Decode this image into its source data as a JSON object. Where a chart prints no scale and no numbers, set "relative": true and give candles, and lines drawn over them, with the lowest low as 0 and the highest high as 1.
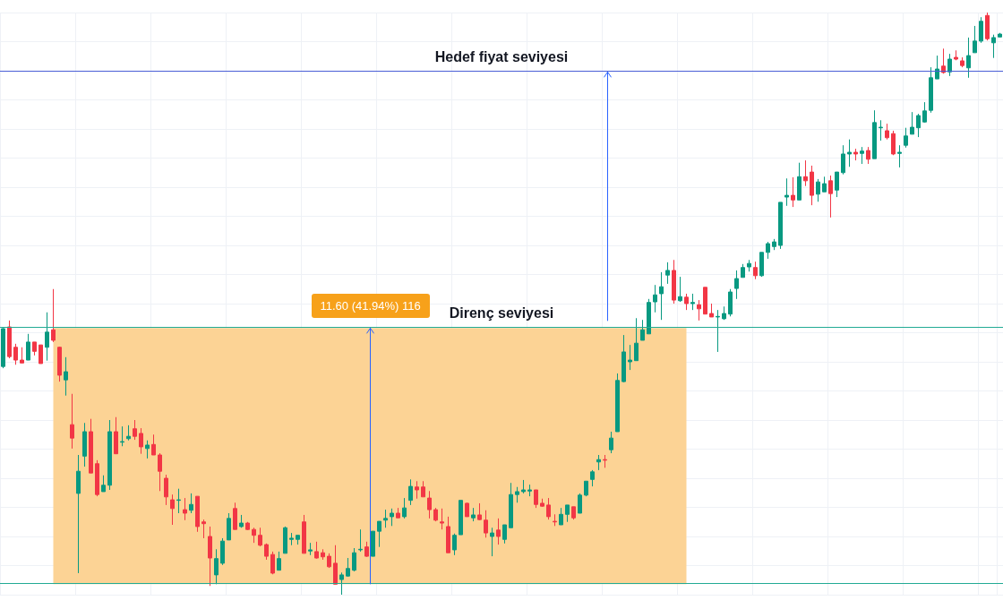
{
  "chart_data": {
    "type": "candlestick",
    "relative": true,
    "grid": true,
    "categories": [
      null,
      null,
      null,
      null,
      null,
      null,
      null,
      null,
      null,
      null,
      null,
      null,
      null,
      null,
      null,
      null,
      null,
      null,
      null,
      null,
      null,
      null,
      null,
      null,
      null,
      null,
      null,
      null,
      null,
      null,
      null,
      null,
      null,
      null,
      null,
      null,
      null,
      null,
      null,
      null,
      null,
      null,
      null,
      null,
      null,
      null,
      null,
      null,
      null,
      null,
      null,
      null,
      null,
      null,
      null,
      null,
      null,
      null,
      null,
      null,
      null,
      null,
      null,
      null,
      null,
      null,
      null,
      null,
      null,
      null,
      null,
      null,
      null,
      null,
      null,
      null,
      null,
      null,
      null,
      null,
      null,
      null,
      null,
      null,
      null,
      null,
      null,
      null,
      null,
      null,
      null,
      null,
      null,
      null,
      null,
      null,
      null,
      null,
      null,
      null,
      null,
      null,
      null,
      null,
      null,
      null,
      null,
      null,
      null,
      null,
      null,
      null,
      null,
      null,
      null,
      null,
      null,
      null,
      null,
      null,
      null,
      null,
      null,
      null,
      null,
      null,
      null,
      null,
      null,
      null,
      null,
      null,
      null,
      null,
      null,
      null,
      null,
      null,
      null,
      null,
      null,
      null,
      null,
      null,
      null,
      null,
      null,
      null,
      null,
      null,
      null,
      null,
      null,
      null,
      null,
      null,
      null,
      null,
      null,
      null
    ],
    "ohlc": [
      [
        0.392,
        0.458,
        0.389,
        0.457
      ],
      [
        0.46,
        0.471,
        0.406,
        0.409
      ],
      [
        0.425,
        0.431,
        0.395,
        0.403
      ],
      [
        0.403,
        0.425,
        0.398,
        0.398
      ],
      [
        0.403,
        0.448,
        0.403,
        0.434
      ],
      [
        0.434,
        0.434,
        0.411,
        0.418
      ],
      [
        0.429,
        0.429,
        0.397,
        0.397
      ],
      [
        0.425,
        0.485,
        0.402,
        0.451
      ],
      [
        0.455,
        0.525,
        0.434,
        0.437
      ],
      [
        0.425,
        0.426,
        0.366,
        0.377
      ],
      [
        0.369,
        0.408,
        0.342,
        0.383
      ],
      [
        0.292,
        0.345,
        0.251,
        0.269
      ],
      [
        0.174,
        0.24,
        0.037,
        0.212
      ],
      [
        0.238,
        0.295,
        0.22,
        0.28
      ],
      [
        0.28,
        0.302,
        0.209,
        0.209
      ],
      [
        0.225,
        0.231,
        0.169,
        0.172
      ],
      [
        0.177,
        0.205,
        0.177,
        0.188
      ],
      [
        0.188,
        0.3,
        0.18,
        0.28
      ],
      [
        0.28,
        0.305,
        0.242,
        0.242
      ],
      [
        0.262,
        0.289,
        0.255,
        0.263
      ],
      [
        0.268,
        0.291,
        0.265,
        0.272
      ],
      [
        0.285,
        0.3,
        0.266,
        0.272
      ],
      [
        0.277,
        0.286,
        0.242,
        0.254
      ],
      [
        0.251,
        0.265,
        0.234,
        0.257
      ],
      [
        0.258,
        0.275,
        0.24,
        0.24
      ],
      [
        0.24,
        0.243,
        0.178,
        0.212
      ],
      [
        0.2,
        0.206,
        0.154,
        0.168
      ],
      [
        0.163,
        0.172,
        0.12,
        0.148
      ],
      [
        0.162,
        0.182,
        0.14,
        0.163
      ],
      [
        0.146,
        0.166,
        0.128,
        0.14
      ],
      [
        0.145,
        0.174,
        0.14,
        0.155
      ],
      [
        0.169,
        0.169,
        0.108,
        0.117
      ],
      [
        0.125,
        0.129,
        0.097,
        0.122
      ],
      [
        0.1,
        0.117,
        0.015,
        0.063
      ],
      [
        0.034,
        0.078,
        0.018,
        0.062
      ],
      [
        0.054,
        0.097,
        0.051,
        0.092
      ],
      [
        0.094,
        0.14,
        0.094,
        0.131
      ],
      [
        0.148,
        0.158,
        0.112,
        0.112
      ],
      [
        0.117,
        0.137,
        0.115,
        0.123
      ],
      [
        0.123,
        0.125,
        0.111,
        0.112
      ],
      [
        0.112,
        0.115,
        0.089,
        0.102
      ],
      [
        0.102,
        0.115,
        0.083,
        0.085
      ],
      [
        0.086,
        0.088,
        0.06,
        0.066
      ],
      [
        0.069,
        0.074,
        0.035,
        0.037
      ],
      [
        0.042,
        0.074,
        0.042,
        0.062
      ],
      [
        0.071,
        0.117,
        0.071,
        0.115
      ],
      [
        0.095,
        0.106,
        0.085,
        0.097
      ],
      [
        0.095,
        0.102,
        0.086,
        0.102
      ],
      [
        0.125,
        0.137,
        0.071,
        0.071
      ],
      [
        0.075,
        0.089,
        0.068,
        0.077
      ],
      [
        0.074,
        0.091,
        0.062,
        0.063
      ],
      [
        0.072,
        0.078,
        0.06,
        0.065
      ],
      [
        0.066,
        0.071,
        0.046,
        0.048
      ],
      [
        0.054,
        0.085,
        0.018,
        0.018
      ],
      [
        0.026,
        0.038,
        0,
        0.034
      ],
      [
        0.032,
        0.063,
        0.031,
        0.045
      ],
      [
        0.042,
        0.08,
        0.04,
        0.072
      ],
      [
        0.077,
        0.112,
        0.074,
        0.078
      ],
      [
        0.082,
        0.091,
        0.065,
        0.066
      ],
      [
        0.066,
        0.109,
        0.066,
        0.109
      ],
      [
        0.109,
        0.126,
        0.082,
        0.126
      ],
      [
        0.128,
        0.146,
        0.115,
        0.131
      ],
      [
        0.134,
        0.148,
        0.118,
        0.14
      ],
      [
        0.14,
        0.149,
        0.132,
        0.132
      ],
      [
        0.134,
        0.166,
        0.131,
        0.149
      ],
      [
        0.162,
        0.198,
        0.154,
        0.186
      ],
      [
        0.185,
        0.195,
        0.165,
        0.18
      ],
      [
        0.185,
        0.195,
        0.168,
        0.168
      ],
      [
        0.166,
        0.178,
        0.131,
        0.146
      ],
      [
        0.146,
        0.149,
        0.126,
        0.128
      ],
      [
        0.125,
        0.148,
        0.112,
        0.123
      ],
      [
        0.117,
        0.134,
        0.072,
        0.072
      ],
      [
        0.077,
        0.105,
        0.068,
        0.102
      ],
      [
        0.103,
        0.162,
        0.103,
        0.162
      ],
      [
        0.157,
        0.158,
        0.134,
        0.134
      ],
      [
        0.132,
        0.149,
        0.126,
        0.137
      ],
      [
        0.137,
        0.157,
        0.128,
        0.129
      ],
      [
        0.128,
        0.145,
        0.098,
        0.106
      ],
      [
        0.1,
        0.115,
        0.066,
        0.106
      ],
      [
        0.111,
        0.131,
        0.086,
        0.1
      ],
      [
        0.095,
        0.12,
        0.088,
        0.12
      ],
      [
        0.115,
        0.192,
        0.115,
        0.172
      ],
      [
        0.172,
        0.185,
        0.158,
        0.177
      ],
      [
        0.177,
        0.197,
        0.174,
        0.18
      ],
      [
        0.178,
        0.189,
        0.169,
        0.18
      ],
      [
        0.18,
        0.18,
        0.149,
        0.155
      ],
      [
        0.157,
        0.165,
        0.151,
        0.152
      ],
      [
        0.154,
        0.166,
        0.129,
        0.134
      ],
      [
        0.126,
        0.138,
        0.118,
        0.125
      ],
      [
        0.12,
        0.149,
        0.12,
        0.138
      ],
      [
        0.138,
        0.154,
        0.125,
        0.154
      ],
      [
        0.151,
        0.151,
        0.129,
        0.132
      ],
      [
        0.14,
        0.174,
        0.14,
        0.171
      ],
      [
        0.171,
        0.195,
        0.169,
        0.195
      ],
      [
        0.198,
        0.214,
        0.186,
        0.211
      ],
      [
        0.228,
        0.24,
        0.214,
        0.232
      ],
      [
        0.232,
        0.24,
        0.218,
        0.231
      ],
      [
        0.249,
        0.28,
        0.243,
        0.269
      ],
      [
        0.28,
        0.38,
        0.28,
        0.368
      ],
      [
        0.366,
        0.446,
        0.365,
        0.417
      ],
      [
        0.4,
        0.429,
        0.386,
        0.403
      ],
      [
        0.402,
        0.475,
        0.402,
        0.432
      ],
      [
        0.437,
        0.472,
        0.437,
        0.455
      ],
      [
        0.448,
        0.508,
        0.448,
        0.502
      ],
      [
        0.503,
        0.532,
        0.485,
        0.515
      ],
      [
        0.517,
        0.554,
        0.472,
        0.529
      ],
      [
        0.549,
        0.571,
        0.534,
        0.557
      ],
      [
        0.557,
        0.575,
        0.5,
        0.506
      ],
      [
        0.505,
        0.546,
        0.503,
        0.512
      ],
      [
        0.511,
        0.517,
        0.489,
        0.5
      ],
      [
        0.5,
        0.517,
        0.489,
        0.502
      ],
      [
        0.498,
        0.506,
        0.471,
        0.491
      ],
      [
        0.528,
        0.528,
        0.482,
        0.482
      ],
      [
        0.483,
        0.5,
        0.477,
        0.477
      ],
      [
        0.477,
        0.489,
        0.417,
        0.478
      ],
      [
        0.474,
        0.495,
        0.472,
        0.483
      ],
      [
        0.482,
        0.525,
        0.478,
        0.52
      ],
      [
        0.526,
        0.557,
        0.508,
        0.543
      ],
      [
        0.545,
        0.568,
        0.545,
        0.562
      ],
      [
        0.563,
        0.575,
        0.555,
        0.569
      ],
      [
        0.562,
        0.572,
        0.542,
        0.548
      ],
      [
        0.548,
        0.588,
        0.546,
        0.588
      ],
      [
        0.588,
        0.606,
        0.577,
        0.603
      ],
      [
        0.598,
        0.611,
        0.592,
        0.606
      ],
      [
        0.6,
        0.674,
        0.594,
        0.674
      ],
      [
        0.683,
        0.715,
        0.668,
        0.686
      ],
      [
        0.686,
        0.717,
        0.666,
        0.678
      ],
      [
        0.678,
        0.742,
        0.678,
        0.718
      ],
      [
        0.718,
        0.746,
        0.702,
        0.711
      ],
      [
        0.726,
        0.737,
        0.669,
        0.686
      ],
      [
        0.688,
        0.714,
        0.675,
        0.709
      ],
      [
        0.692,
        0.718,
        0.692,
        0.706
      ],
      [
        0.711,
        0.72,
        0.648,
        0.689
      ],
      [
        0.695,
        0.726,
        0.683,
        0.726
      ],
      [
        0.725,
        0.772,
        0.722,
        0.757
      ],
      [
        0.757,
        0.782,
        0.735,
        0.76
      ],
      [
        0.76,
        0.766,
        0.746,
        0.757
      ],
      [
        0.758,
        0.769,
        0.74,
        0.762
      ],
      [
        0.763,
        0.769,
        0.74,
        0.748
      ],
      [
        0.749,
        0.832,
        0.749,
        0.811
      ],
      [
        0.802,
        0.815,
        0.78,
        0.803
      ],
      [
        0.797,
        0.809,
        0.782,
        0.785
      ],
      [
        0.792,
        0.797,
        0.755,
        0.757
      ],
      [
        0.758,
        0.772,
        0.734,
        0.76
      ],
      [
        0.772,
        0.802,
        0.768,
        0.788
      ],
      [
        0.791,
        0.829,
        0.791,
        0.803
      ],
      [
        0.802,
        0.826,
        0.786,
        0.823
      ],
      [
        0.812,
        0.846,
        0.811,
        0.831
      ],
      [
        0.832,
        0.906,
        0.828,
        0.888
      ],
      [
        0.886,
        0.926,
        0.886,
        0.903
      ],
      [
        0.908,
        0.938,
        0.895,
        0.897
      ],
      [
        0.898,
        0.929,
        0.891,
        0.92
      ],
      [
        0.923,
        0.935,
        0.918,
        0.92
      ],
      [
        0.917,
        0.923,
        0.906,
        0.909
      ],
      [
        0.905,
        0.957,
        0.888,
        0.926
      ],
      [
        0.931,
        0.977,
        0.931,
        0.951
      ],
      [
        0.951,
        0.992,
        0.948,
        0.985
      ],
      [
        0.995,
        1,
        0.952,
        0.955
      ],
      [
        0.948,
        0.962,
        0.922,
        0.957
      ],
      [
        0.958,
        0.965,
        0.958,
        0.963
      ]
    ],
    "colors": [
      "#089981",
      "#f23645",
      "#f23645",
      "#f23645",
      "#089981",
      "#f23645",
      "#f23645",
      "#089981",
      "#f23645",
      "#f23645",
      "#089981",
      "#f23645",
      "#089981",
      "#089981",
      "#f23645",
      "#f23645",
      "#089981",
      "#089981",
      "#f23645",
      "#089981",
      "#089981",
      "#f23645",
      "#f23645",
      "#089981",
      "#f23645",
      "#f23645",
      "#f23645",
      "#f23645",
      "#089981",
      "#f23645",
      "#089981",
      "#f23645",
      "#f23645",
      "#f23645",
      "#089981",
      "#089981",
      "#089981",
      "#f23645",
      "#089981",
      "#f23645",
      "#f23645",
      "#f23645",
      "#f23645",
      "#f23645",
      "#089981",
      "#089981",
      "#089981",
      "#089981",
      "#f23645",
      "#089981",
      "#f23645",
      "#f23645",
      "#f23645",
      "#f23645",
      "#089981",
      "#089981",
      "#089981",
      "#089981",
      "#f23645",
      "#089981",
      "#089981",
      "#089981",
      "#089981",
      "#f23645",
      "#089981",
      "#089981",
      "#f23645",
      "#f23645",
      "#f23645",
      "#f23645",
      "#f23645",
      "#f23645",
      "#089981",
      "#089981",
      "#f23645",
      "#089981",
      "#f23645",
      "#f23645",
      "#089981",
      "#f23645",
      "#089981",
      "#089981",
      "#089981",
      "#089981",
      "#089981",
      "#f23645",
      "#f23645",
      "#f23645",
      "#f23645",
      "#089981",
      "#089981",
      "#f23645",
      "#089981",
      "#089981",
      "#089981",
      "#089981",
      "#f23645",
      "#089981",
      "#089981",
      "#089981",
      "#089981",
      "#089981",
      "#089981",
      "#089981",
      "#089981",
      "#089981",
      "#089981",
      "#f23645",
      "#089981",
      "#f23645",
      "#089981",
      "#f23645",
      "#f23645",
      "#f23645",
      "#089981",
      "#089981",
      "#089981",
      "#089981",
      "#089981",
      "#089981",
      "#f23645",
      "#089981",
      "#089981",
      "#089981",
      "#089981",
      "#089981",
      "#f23645",
      "#089981",
      "#f23645",
      "#f23645",
      "#089981",
      "#089981",
      "#f23645",
      "#089981",
      "#089981",
      "#089981",
      "#f23645",
      "#089981",
      "#f23645",
      "#089981",
      "#089981",
      "#f23645",
      "#f23645",
      "#089981",
      "#089981",
      "#089981",
      "#089981",
      "#089981",
      "#089981",
      "#089981",
      "#f23645",
      "#089981",
      "#f23645",
      "#f23645",
      "#089981",
      "#089981",
      "#089981",
      "#f23645",
      "#089981",
      "#089981"
    ],
    "ref_lines": [
      {
        "axis": "y",
        "value": 0.018,
        "color": "#22ab94"
      },
      {
        "axis": "y",
        "value": 0.458,
        "label": "Direnç seviyesi",
        "color": "#22ab94"
      },
      {
        "axis": "y",
        "value": 0.898,
        "label": "Hedef fiyat seviyesi",
        "color": "#4a5fd6"
      }
    ],
    "bands": [
      {
        "axis": "y",
        "from": 0.018,
        "to": 0.458,
        "color": "#fcd395"
      }
    ],
    "annotations": [
      "11.60 (41.94%) 116"
    ]
  }
}
